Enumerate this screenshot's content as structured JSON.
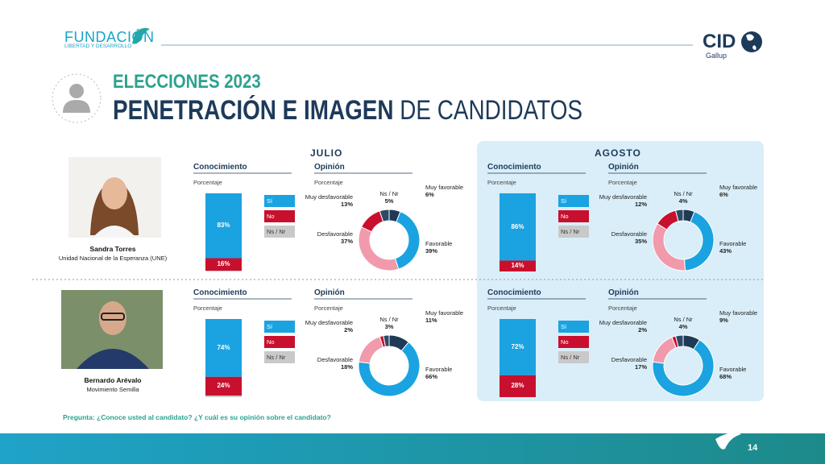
{
  "header": {
    "org": "FUNDACIÓN",
    "org_sub": "LIBERTAD Y DESARROLLO",
    "brand": "CID",
    "brand_sub": "Gallup",
    "kicker": "ELECCIONES 2023",
    "title_bold": "PENETRACIÓN E IMAGEN",
    "title_light": "DE CANDIDATOS"
  },
  "periods": [
    "JULIO",
    "AGOSTO"
  ],
  "candidates": [
    {
      "name": "Sandra Torres",
      "party": "Unidad Nacional de la Esperanza (UNE)"
    },
    {
      "name": "Bernardo Arévalo",
      "party": "Movimiento Semilla"
    }
  ],
  "chart_data": [
    {
      "type": "bar",
      "title": "Conocimiento",
      "subtitle": "Porcentaje",
      "categories": [
        null
      ],
      "ylim": [
        0,
        100
      ],
      "series": [
        {
          "name": "Sí",
          "color": "#1aa3e0",
          "values": [
            83
          ],
          "value_labels": [
            "83%"
          ]
        },
        {
          "name": "No",
          "color": "#c8102e",
          "values": [
            16
          ],
          "value_labels": [
            "16%"
          ]
        },
        {
          "name": "Ns / Nr",
          "color": "#c9c9c9",
          "values": [
            1
          ],
          "value_labels": [
            null
          ]
        }
      ]
    },
    {
      "type": "donut",
      "title": "Opinión",
      "subtitle": "Porcentaje",
      "categories": [
        "Muy favorable",
        "Favorable",
        "Desfavorable",
        "Muy desfavorable",
        "Ns / Nr"
      ],
      "colors": [
        "#1e3a56",
        "#1aa3e0",
        "#f19aac",
        "#c8102e",
        "#2b4a66"
      ],
      "values": [
        6,
        39,
        37,
        13,
        5
      ],
      "value_labels": [
        "6%",
        "39%",
        "37%",
        "13%",
        "5%"
      ]
    },
    {
      "type": "bar",
      "title": "Conocimiento",
      "subtitle": "Porcentaje",
      "categories": [
        null
      ],
      "ylim": [
        0,
        100
      ],
      "series": [
        {
          "name": "Sí",
          "color": "#1aa3e0",
          "values": [
            86
          ],
          "value_labels": [
            "86%"
          ]
        },
        {
          "name": "No",
          "color": "#c8102e",
          "values": [
            14
          ],
          "value_labels": [
            "14%"
          ]
        },
        {
          "name": "Ns / Nr",
          "color": "#c9c9c9",
          "values": [
            0
          ],
          "value_labels": [
            null
          ]
        }
      ]
    },
    {
      "type": "donut",
      "title": "Opinión",
      "subtitle": "Porcentaje",
      "categories": [
        "Muy favorable",
        "Favorable",
        "Desfavorable",
        "Muy desfavorable",
        "Ns / Nr"
      ],
      "colors": [
        "#1e3a56",
        "#1aa3e0",
        "#f19aac",
        "#c8102e",
        "#2b4a66"
      ],
      "values": [
        6,
        43,
        35,
        12,
        4
      ],
      "value_labels": [
        "6%",
        "43%",
        "35%",
        "12%",
        "4%"
      ]
    },
    {
      "type": "bar",
      "title": "Conocimiento",
      "subtitle": "Porcentaje",
      "categories": [
        null
      ],
      "ylim": [
        0,
        100
      ],
      "series": [
        {
          "name": "Sí",
          "color": "#1aa3e0",
          "values": [
            74
          ],
          "value_labels": [
            "74%"
          ]
        },
        {
          "name": "No",
          "color": "#c8102e",
          "values": [
            24
          ],
          "value_labels": [
            "24%"
          ]
        },
        {
          "name": "Ns / Nr",
          "color": "#c9c9c9",
          "values": [
            2
          ],
          "value_labels": [
            null
          ]
        }
      ]
    },
    {
      "type": "donut",
      "title": "Opinión",
      "subtitle": "Porcentaje",
      "categories": [
        "Muy favorable",
        "Favorable",
        "Desfavorable",
        "Muy desfavorable",
        "Ns / Nr"
      ],
      "colors": [
        "#1e3a56",
        "#1aa3e0",
        "#f19aac",
        "#c8102e",
        "#2b4a66"
      ],
      "values": [
        11,
        66,
        18,
        2,
        3
      ],
      "value_labels": [
        "11%",
        "66%",
        "18%",
        "2%",
        "3%"
      ]
    },
    {
      "type": "bar",
      "title": "Conocimiento",
      "subtitle": "Porcentaje",
      "categories": [
        null
      ],
      "ylim": [
        0,
        100
      ],
      "series": [
        {
          "name": "Sí",
          "color": "#1aa3e0",
          "values": [
            72
          ],
          "value_labels": [
            "72%"
          ]
        },
        {
          "name": "No",
          "color": "#c8102e",
          "values": [
            28
          ],
          "value_labels": [
            "28%"
          ]
        },
        {
          "name": "Ns / Nr",
          "color": "#c9c9c9",
          "values": [
            0
          ],
          "value_labels": [
            null
          ]
        }
      ]
    },
    {
      "type": "donut",
      "title": "Opinión",
      "subtitle": "Porcentaje",
      "categories": [
        "Muy favorable",
        "Favorable",
        "Desfavorable",
        "Muy desfavorable",
        "Ns / Nr"
      ],
      "colors": [
        "#1e3a56",
        "#1aa3e0",
        "#f19aac",
        "#c8102e",
        "#2b4a66"
      ],
      "values": [
        9,
        68,
        17,
        2,
        4
      ],
      "value_labels": [
        "9%",
        "68%",
        "17%",
        "2%",
        "4%"
      ]
    }
  ],
  "footer": {
    "question": "Pregunta: ¿Conoce usted al candidato? ¿Y cuál es su opinión sobre el candidato?",
    "page": 14
  }
}
